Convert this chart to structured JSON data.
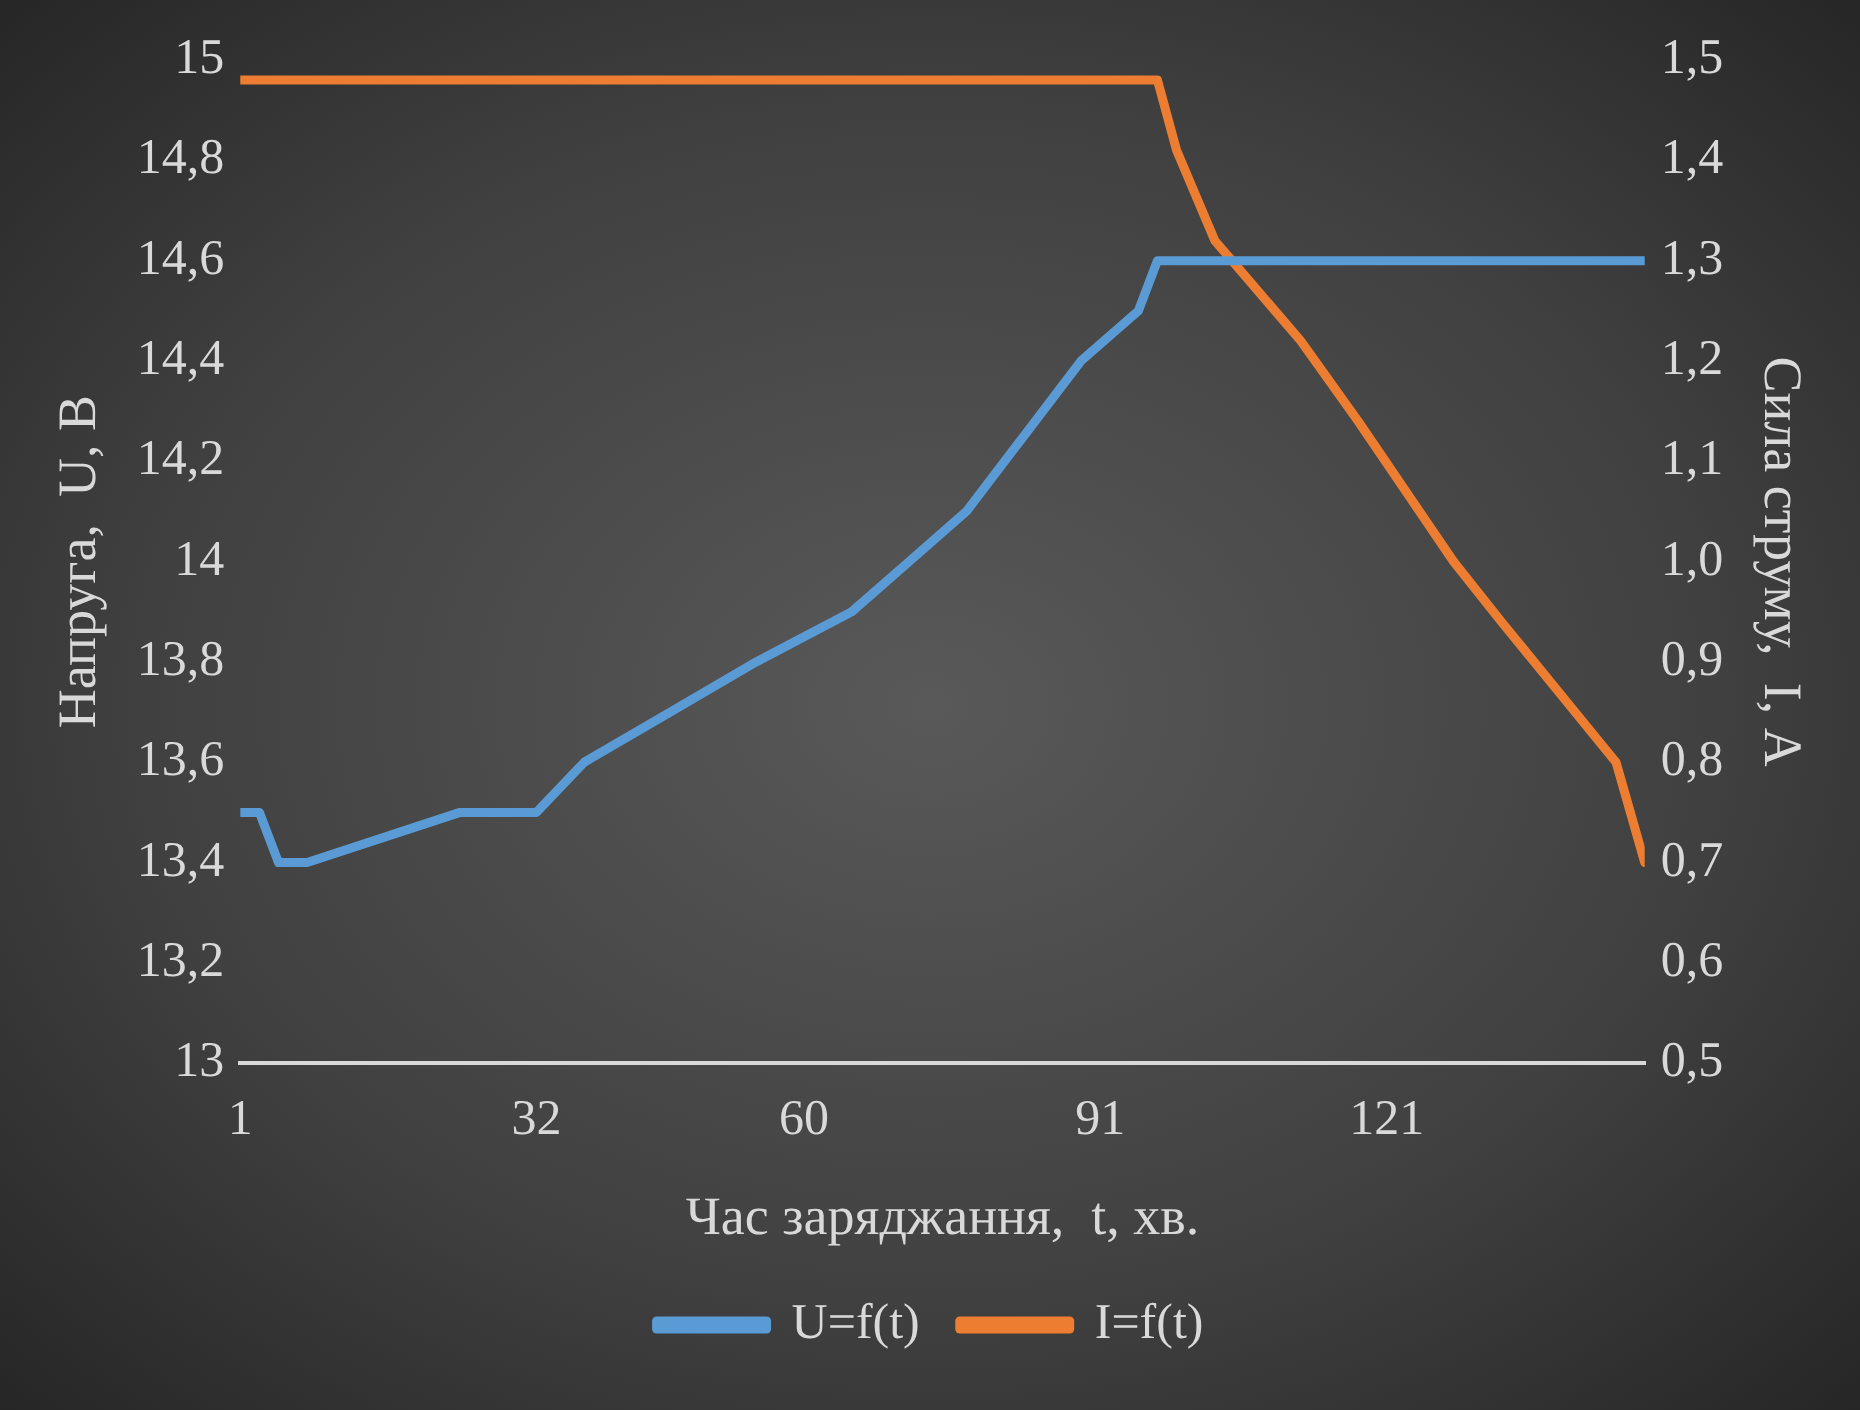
{
  "chart_data": {
    "type": "line",
    "xlabel": "Час заряджання,  t, хв.",
    "ylabel": "Напруга,  U, В",
    "y2label": "Сила струму,  I, А",
    "xlim": [
      1,
      148
    ],
    "xticks": [
      1,
      32,
      60,
      91,
      121
    ],
    "ylim": [
      13,
      15
    ],
    "yticks": [
      13,
      {
        "value": 13.2,
        "label": "13,2"
      },
      {
        "value": 13.4,
        "label": "13,4"
      },
      {
        "value": 13.6,
        "label": "13,6"
      },
      {
        "value": 13.8,
        "label": "13,8"
      },
      14,
      {
        "value": 14.2,
        "label": "14,2"
      },
      {
        "value": 14.4,
        "label": "14,4"
      },
      {
        "value": 14.6,
        "label": "14,6"
      },
      {
        "value": 14.8,
        "label": "14,8"
      },
      15
    ],
    "y2lim": [
      0.5,
      1.5
    ],
    "y2ticks": [
      {
        "value": 0.5,
        "label": "0,5"
      },
      {
        "value": 0.6,
        "label": "0,6"
      },
      {
        "value": 0.7,
        "label": "0,7"
      },
      {
        "value": 0.8,
        "label": "0,8"
      },
      {
        "value": 0.9,
        "label": "0,9"
      },
      {
        "value": 1.0,
        "label": "1,0"
      },
      {
        "value": 1.1,
        "label": "1,1"
      },
      {
        "value": 1.2,
        "label": "1,2"
      },
      {
        "value": 1.3,
        "label": "1,3"
      },
      {
        "value": 1.4,
        "label": "1,4"
      },
      {
        "value": 1.5,
        "label": "1,5"
      }
    ],
    "grid": false,
    "legend": "bottom",
    "marker": "none",
    "line_style": "solid",
    "series": [
      {
        "name": "U=f(t)",
        "color": "#5b9bd5",
        "x": [
          1,
          3,
          5,
          8,
          24,
          32,
          37,
          46,
          55,
          65,
          71,
          77,
          89,
          95,
          97,
          148
        ],
        "values": [
          13.5,
          13.5,
          13.4,
          13.4,
          13.5,
          13.5,
          13.6,
          13.7,
          13.8,
          13.9,
          14.0,
          14.1,
          14.4,
          14.5,
          14.6,
          14.6
        ]
      },
      {
        "name": "I=f(t)",
        "color": "#ed7d31",
        "axis": "y2",
        "x": [
          1,
          97,
          99,
          103,
          112,
          118,
          128,
          133,
          139,
          145,
          148
        ],
        "values": [
          1.48,
          1.48,
          1.41,
          1.32,
          1.22,
          1.14,
          1.0,
          0.94,
          0.87,
          0.8,
          0.7
        ]
      }
    ]
  }
}
